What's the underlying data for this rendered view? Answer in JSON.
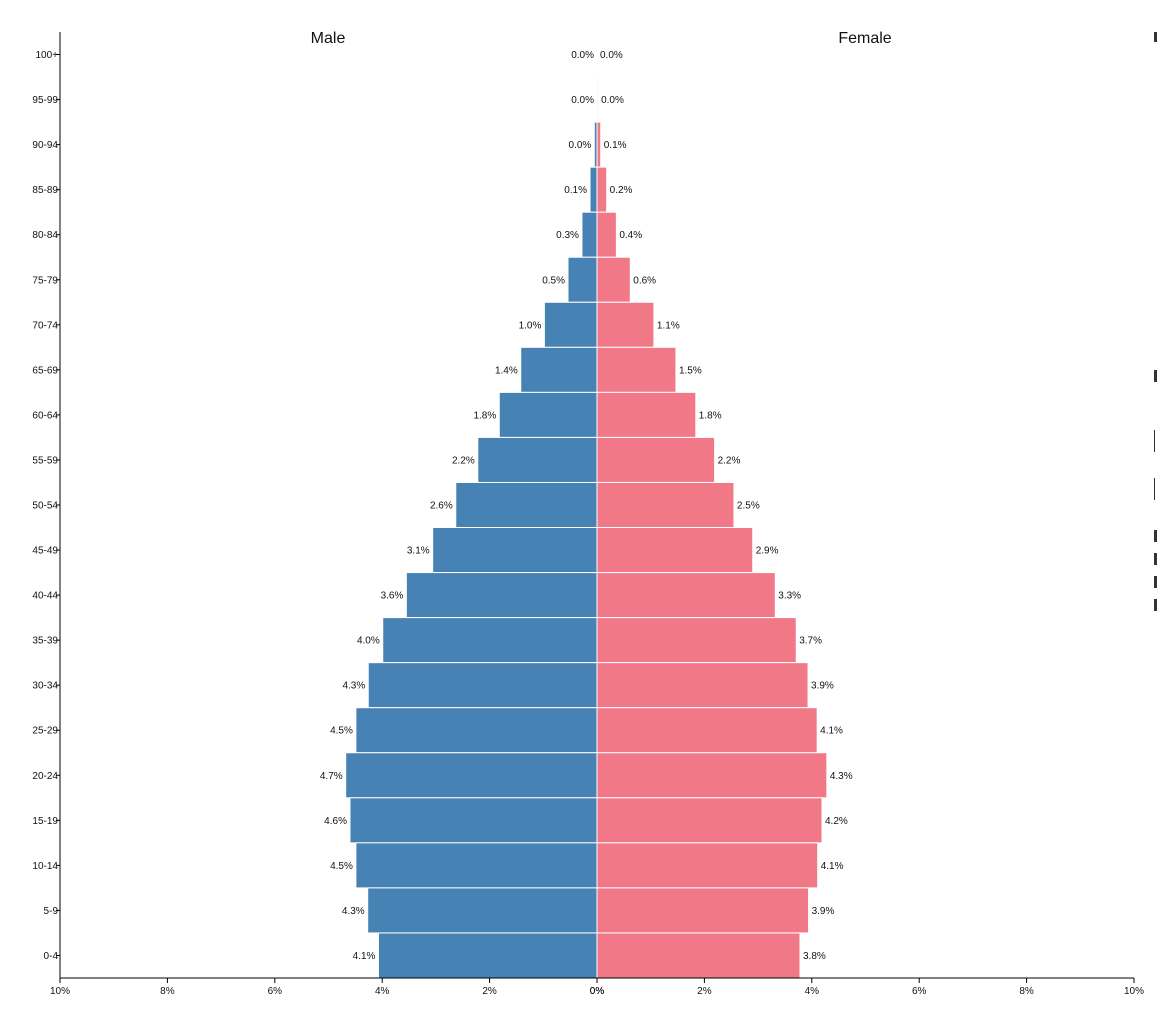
{
  "chart_data": {
    "type": "bar",
    "orientation": "horizontal-population-pyramid",
    "categories": [
      "100+",
      "95-99",
      "90-94",
      "85-89",
      "80-84",
      "75-79",
      "70-74",
      "65-69",
      "60-64",
      "55-59",
      "50-54",
      "45-49",
      "40-44",
      "35-39",
      "30-34",
      "25-29",
      "20-24",
      "15-19",
      "10-14",
      "5-9",
      "0-4"
    ],
    "series": [
      {
        "name": "Male",
        "color": "#4682b4",
        "values": [
          0.0,
          0.0,
          0.05,
          0.13,
          0.28,
          0.54,
          0.98,
          1.42,
          1.82,
          2.22,
          2.63,
          3.06,
          3.55,
          3.99,
          4.26,
          4.49,
          4.68,
          4.6,
          4.49,
          4.27,
          4.07
        ],
        "labels": [
          "0.0%",
          "0.0%",
          "0.0%",
          "0.1%",
          "0.3%",
          "0.5%",
          "1.0%",
          "1.4%",
          "1.8%",
          "2.2%",
          "2.6%",
          "3.1%",
          "3.6%",
          "4.0%",
          "4.3%",
          "4.5%",
          "4.7%",
          "4.6%",
          "4.5%",
          "4.3%",
          "4.1%"
        ]
      },
      {
        "name": "Female",
        "color": "#f07887",
        "values": [
          0.0,
          0.02,
          0.07,
          0.18,
          0.36,
          0.62,
          1.06,
          1.47,
          1.84,
          2.19,
          2.55,
          2.9,
          3.32,
          3.71,
          3.93,
          4.1,
          4.28,
          4.19,
          4.11,
          3.94,
          3.78
        ],
        "labels": [
          "0.0%",
          "0.0%",
          "0.1%",
          "0.2%",
          "0.4%",
          "0.6%",
          "1.1%",
          "1.5%",
          "1.8%",
          "2.2%",
          "2.5%",
          "2.9%",
          "3.3%",
          "3.7%",
          "3.9%",
          "4.1%",
          "4.3%",
          "4.2%",
          "4.1%",
          "3.9%",
          "3.8%"
        ]
      }
    ],
    "xlim": [
      -10,
      10
    ],
    "left_ticks": [
      "10%",
      "8%",
      "6%",
      "4%",
      "2%",
      "0%"
    ],
    "right_ticks": [
      "0%",
      "2%",
      "4%",
      "6%",
      "8%",
      "10%"
    ],
    "grid": false
  }
}
